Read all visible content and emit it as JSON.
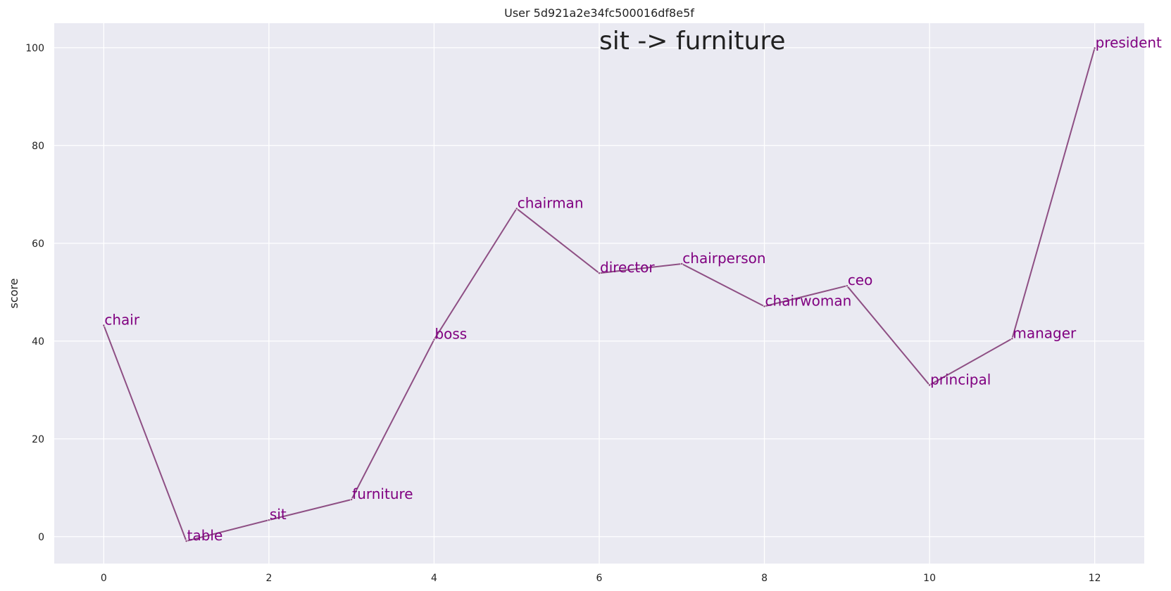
{
  "chart_data": {
    "type": "line",
    "title": "User 5d921a2e34fc500016df8e5f",
    "annotation": "sit -> furniture",
    "xlabel": "",
    "ylabel": "score",
    "xlim": [
      -0.6,
      12.6
    ],
    "ylim": [
      -5.5,
      105
    ],
    "xticks": [
      0,
      2,
      4,
      6,
      8,
      10,
      12
    ],
    "yticks": [
      0,
      20,
      40,
      60,
      80,
      100
    ],
    "grid": true,
    "series": [
      {
        "x": [
          0,
          1,
          2,
          3,
          4,
          5,
          6,
          7,
          8,
          9,
          10,
          11,
          12
        ],
        "y": [
          43.2,
          -0.9,
          3.4,
          7.6,
          40.3,
          67.1,
          53.9,
          55.8,
          47.1,
          51.3,
          31.0,
          40.5,
          99.9
        ],
        "labels": [
          "chair",
          "table",
          "sit",
          "furniture",
          "boss",
          "chairman",
          "director",
          "chairperson",
          "chairwoman",
          "ceo",
          "principal",
          "manager",
          "president"
        ]
      }
    ],
    "colors": {
      "line": "#8e4f84",
      "label": "#800080",
      "plot_background": "#eaeaf2",
      "grid": "#ffffff"
    }
  }
}
